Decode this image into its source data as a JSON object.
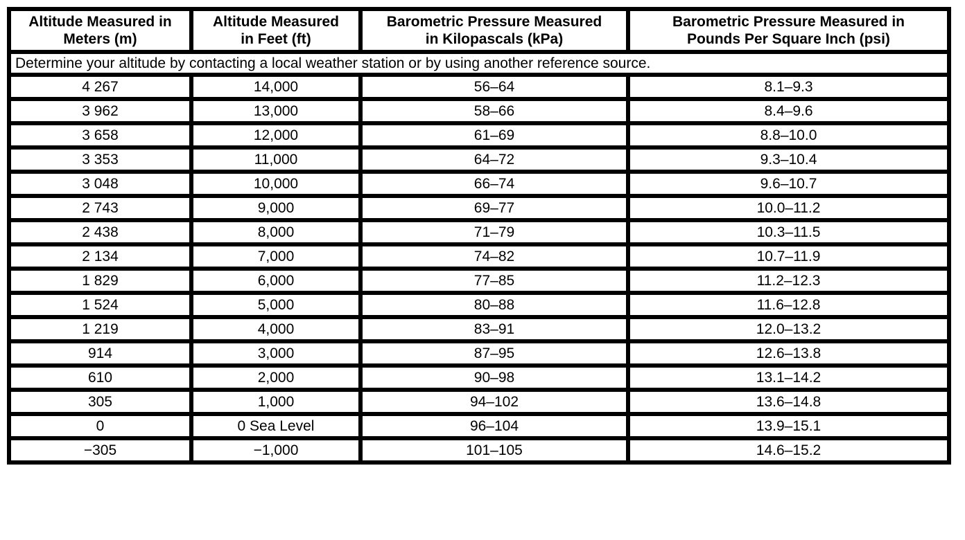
{
  "colors": {
    "border": "#000000",
    "text": "#000000",
    "background": "#ffffff"
  },
  "table": {
    "headers": [
      "Altitude Measured in\nMeters (m)",
      "Altitude Measured\nin Feet (ft)",
      "Barometric Pressure Measured\nin Kilopascals (kPa)",
      "Barometric Pressure Measured in\nPounds Per Square Inch (psi)"
    ],
    "note": "Determine your altitude by contacting a local weather station or by using another reference source.",
    "rows": [
      [
        "4 267",
        "14,000",
        "56–64",
        "8.1–9.3"
      ],
      [
        "3 962",
        "13,000",
        "58–66",
        "8.4–9.6"
      ],
      [
        "3 658",
        "12,000",
        "61–69",
        "8.8–10.0"
      ],
      [
        "3 353",
        "11,000",
        "64–72",
        "9.3–10.4"
      ],
      [
        "3 048",
        "10,000",
        "66–74",
        "9.6–10.7"
      ],
      [
        "2 743",
        "9,000",
        "69–77",
        "10.0–11.2"
      ],
      [
        "2 438",
        "8,000",
        "71–79",
        "10.3–11.5"
      ],
      [
        "2 134",
        "7,000",
        "74–82",
        "10.7–11.9"
      ],
      [
        "1 829",
        "6,000",
        "77–85",
        "11.2–12.3"
      ],
      [
        "1 524",
        "5,000",
        "80–88",
        "11.6–12.8"
      ],
      [
        "1 219",
        "4,000",
        "83–91",
        "12.0–13.2"
      ],
      [
        "914",
        "3,000",
        "87–95",
        "12.6–13.8"
      ],
      [
        "610",
        "2,000",
        "90–98",
        "13.1–14.2"
      ],
      [
        "305",
        "1,000",
        "94–102",
        "13.6–14.8"
      ],
      [
        "0",
        "0 Sea Level",
        "96–104",
        "13.9–15.1"
      ],
      [
        "−305",
        "−1,000",
        "101–105",
        "14.6–15.2"
      ]
    ]
  }
}
